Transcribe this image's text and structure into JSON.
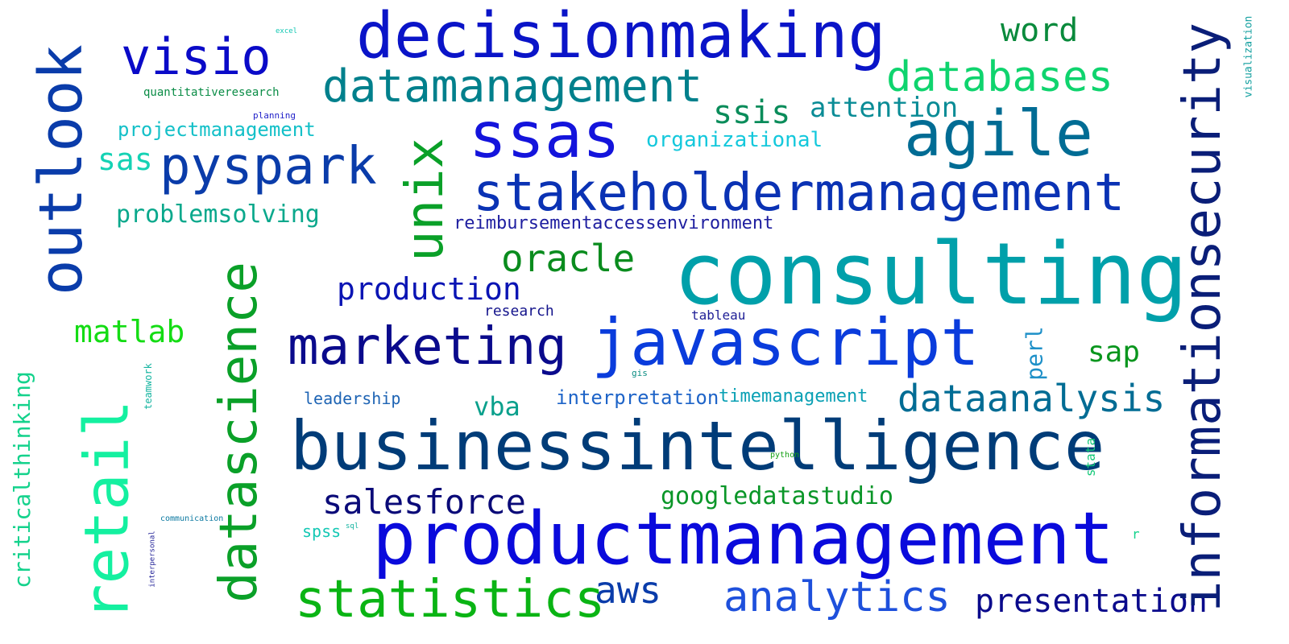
{
  "words": {
    "decisionmaking": {
      "text": "decisionmaking",
      "color": "#0a14c8"
    },
    "visio": {
      "text": "visio",
      "color": "#0a0ac8"
    },
    "word": {
      "text": "word",
      "color": "#0a8a3c"
    },
    "datamanagement": {
      "text": "datamanagement",
      "color": "#00808c"
    },
    "databases": {
      "text": "databases",
      "color": "#0fd46e"
    },
    "ssas": {
      "text": "ssas",
      "color": "#1414dc"
    },
    "agile": {
      "text": "agile",
      "color": "#006c94"
    },
    "ssis": {
      "text": "ssis",
      "color": "#0a8c5a"
    },
    "attention": {
      "text": "attention",
      "color": "#0a8c96"
    },
    "organizational": {
      "text": "organizational",
      "color": "#14c8dc"
    },
    "quantitativeresearch": {
      "text": "quantitativeresearch",
      "color": "#0a8c46"
    },
    "planning": {
      "text": "planning",
      "color": "#1e1ec8"
    },
    "excel": {
      "text": "excel",
      "color": "#14c8b4"
    },
    "projectmanagement": {
      "text": "projectmanagement",
      "color": "#14c0c8"
    },
    "sas": {
      "text": "sas",
      "color": "#14d2b4"
    },
    "pyspark": {
      "text": "pyspark",
      "color": "#0a3caa"
    },
    "stakeholdermanagement": {
      "text": "stakeholdermanagement",
      "color": "#0a32b4"
    },
    "problemsolving": {
      "text": "problemsolving",
      "color": "#0aa88c"
    },
    "reimbursementaccessenvironment": {
      "text": "reimbursementaccessenvironment",
      "color": "#1e1ea0"
    },
    "oracle": {
      "text": "oracle",
      "color": "#0a8c1e"
    },
    "consulting": {
      "text": "consulting",
      "color": "#00a0aa"
    },
    "production": {
      "text": "production",
      "color": "#0a14b4"
    },
    "research": {
      "text": "research",
      "color": "#14148c"
    },
    "tableau": {
      "text": "tableau",
      "color": "#1e1e96"
    },
    "matlab": {
      "text": "matlab",
      "color": "#14dc14"
    },
    "marketing": {
      "text": "marketing",
      "color": "#0a0a8c"
    },
    "javascript": {
      "text": "javascript",
      "color": "#0a3cdc"
    },
    "perl": {
      "text": "perl",
      "color": "#1e90c8"
    },
    "sap": {
      "text": "sap",
      "color": "#0a961e"
    },
    "gis": {
      "text": "gis",
      "color": "#0a8c82"
    },
    "leadership": {
      "text": "leadership",
      "color": "#1e64b4"
    },
    "vba": {
      "text": "vba",
      "color": "#0aa08c"
    },
    "interpretation": {
      "text": "interpretation",
      "color": "#1e64c8"
    },
    "timemanagement": {
      "text": "timemanagement",
      "color": "#0aa0b4"
    },
    "dataanalysis": {
      "text": "dataanalysis",
      "color": "#006c94"
    },
    "businessintelligence": {
      "text": "businessintelligence",
      "color": "#003c78"
    },
    "python": {
      "text": "python",
      "color": "#14a014"
    },
    "salesforce": {
      "text": "salesforce",
      "color": "#0a0a78"
    },
    "googledatastudio": {
      "text": "googledatastudio",
      "color": "#0a9628"
    },
    "communication": {
      "text": "communication",
      "color": "#0a78a0"
    },
    "sql": {
      "text": "sql",
      "color": "#14b4a0"
    },
    "spss": {
      "text": "spss",
      "color": "#14c8b4"
    },
    "productmanagement": {
      "text": "productmanagement",
      "color": "#0a0adc"
    },
    "aws": {
      "text": "aws",
      "color": "#0a3caa"
    },
    "statistics": {
      "text": "statistics",
      "color": "#0ab414"
    },
    "analytics": {
      "text": "analytics",
      "color": "#1e50dc"
    },
    "presentation": {
      "text": "presentation",
      "color": "#0a0a8c"
    },
    "r": {
      "text": "r",
      "color": "#14d28c"
    },
    "outlook": {
      "text": "outlook",
      "color": "#0a3caa"
    },
    "unix": {
      "text": "unix",
      "color": "#0aa028"
    },
    "informationsecurity": {
      "text": "informationsecurity",
      "color": "#0a1e78"
    },
    "retail": {
      "text": "retail",
      "color": "#14f0a0"
    },
    "datascience": {
      "text": "datascience",
      "color": "#0aa028"
    },
    "criticalthinking": {
      "text": "criticalthinking",
      "color": "#14d28c"
    },
    "teamwork": {
      "text": "teamwork",
      "color": "#14b4a0"
    },
    "interpersonal": {
      "text": "interpersonal",
      "color": "#1e1e96"
    },
    "stata": {
      "text": "stata",
      "color": "#14c878"
    },
    "visualization": {
      "text": "visualization",
      "color": "#14a0a0"
    }
  }
}
